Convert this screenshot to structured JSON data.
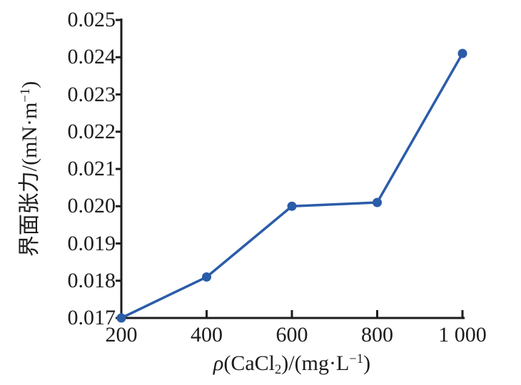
{
  "colors": {
    "background": "#ffffff",
    "axis": "#1c1c1c",
    "text": "#1c1c1c",
    "line": "#2b5ca8",
    "marker": "#2b5ca8"
  },
  "chart_data": {
    "type": "line",
    "title": "",
    "series_name": "界面张力",
    "x": [
      200,
      400,
      600,
      800,
      1000
    ],
    "y": [
      0.017,
      0.0181,
      0.02,
      0.0201,
      0.0241
    ],
    "xlabel": "ρ(CaCl2)/(mg·L−1)",
    "ylabel": "界面张力/(mN·m−1)",
    "xlabel_parts": [
      {
        "t": "ρ",
        "i": true
      },
      {
        "t": "(CaCl"
      },
      {
        "t": "2",
        "sub": true
      },
      {
        "t": ")/(mg·L"
      },
      {
        "t": "−1",
        "sup": true
      },
      {
        "t": ")"
      }
    ],
    "ylabel_parts": [
      {
        "t": "界面张力/(mN·m"
      },
      {
        "t": "−1",
        "sup": true
      },
      {
        "t": ")"
      }
    ],
    "xlim": [
      200,
      1000
    ],
    "ylim": [
      0.017,
      0.025
    ],
    "x_ticks": [
      "200",
      "400",
      "600",
      "800",
      "1 000"
    ],
    "x_tick_values": [
      200,
      400,
      600,
      800,
      1000
    ],
    "y_ticks": [
      "0.017",
      "0.018",
      "0.019",
      "0.020",
      "0.021",
      "0.022",
      "0.023",
      "0.024",
      "0.025"
    ],
    "y_tick_values": [
      0.017,
      0.018,
      0.019,
      0.02,
      0.021,
      0.022,
      0.023,
      0.024,
      0.025
    ],
    "grid": false,
    "legend": "none",
    "marker": "filled-circle"
  }
}
